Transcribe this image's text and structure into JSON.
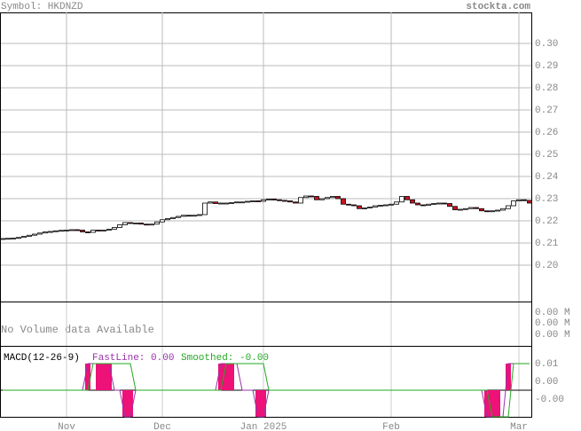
{
  "chart_data": {
    "type": "candlestick",
    "title": "Symbol: HKDNZD",
    "source": "stockta.com",
    "categories": [
      null,
      null,
      null,
      null,
      null,
      null,
      null,
      null,
      null,
      null,
      null,
      null,
      "Nov",
      null,
      null,
      null,
      null,
      null,
      null,
      null,
      null,
      null,
      null,
      null,
      null,
      null,
      null,
      null,
      null,
      null,
      "Dec",
      null,
      null,
      null,
      null,
      null,
      null,
      null,
      null,
      null,
      null,
      null,
      null,
      null,
      null,
      null,
      null,
      null,
      null,
      "Jan 2025",
      null,
      null,
      null,
      null,
      null,
      null,
      null,
      null,
      null,
      null,
      null,
      null,
      null,
      null,
      null,
      null,
      null,
      null,
      null,
      null,
      null,
      null,
      null,
      "Feb",
      null,
      null,
      null,
      null,
      null,
      null,
      null,
      null,
      null,
      null,
      null,
      null,
      null,
      null,
      null,
      null,
      null,
      null,
      null,
      null,
      null,
      null,
      null,
      "Mar",
      null,
      null
    ],
    "open": [
      0.2118,
      0.212,
      0.2121,
      0.2122,
      0.2125,
      0.213,
      0.2135,
      0.214,
      0.2145,
      0.215,
      0.2152,
      0.2155,
      0.2157,
      0.2158,
      0.216,
      0.2158,
      0.215,
      0.2148,
      0.2158,
      0.2156,
      0.2158,
      0.2162,
      0.217,
      0.2182,
      0.2192,
      0.219,
      0.219,
      0.2185,
      0.2182,
      0.2185,
      0.2195,
      0.2205,
      0.221,
      0.2215,
      0.222,
      0.2225,
      0.2222,
      0.2225,
      0.2228,
      0.228,
      0.2285,
      0.2278,
      0.228,
      0.228,
      0.2282,
      0.2285,
      0.2285,
      0.2288,
      0.229,
      0.2288,
      0.2295,
      0.2298,
      0.2295,
      0.2292,
      0.229,
      0.2285,
      0.228,
      0.2305,
      0.2312,
      0.231,
      0.2295,
      0.23,
      0.2305,
      0.231,
      0.23,
      0.2275,
      0.2272,
      0.2268,
      0.2255,
      0.2258,
      0.2262,
      0.2268,
      0.227,
      0.2272,
      0.2275,
      0.2285,
      0.231,
      0.2295,
      0.228,
      0.2272,
      0.227,
      0.2275,
      0.2278,
      0.228,
      0.2278,
      0.2265,
      0.225,
      0.2252,
      0.2255,
      0.226,
      0.2255,
      0.2245,
      0.2242,
      0.2245,
      0.2248,
      0.2255,
      0.2268,
      0.229,
      0.2295,
      0.2292
    ],
    "close": [
      0.212,
      0.2121,
      0.2122,
      0.2125,
      0.213,
      0.2135,
      0.214,
      0.2145,
      0.215,
      0.2152,
      0.2155,
      0.2157,
      0.2158,
      0.216,
      0.2158,
      0.215,
      0.2148,
      0.2158,
      0.2156,
      0.2158,
      0.2162,
      0.217,
      0.2182,
      0.2192,
      0.219,
      0.219,
      0.2185,
      0.2182,
      0.2185,
      0.2195,
      0.2205,
      0.221,
      0.2215,
      0.222,
      0.2225,
      0.2222,
      0.2225,
      0.2228,
      0.228,
      0.2285,
      0.2278,
      0.228,
      0.228,
      0.2282,
      0.2285,
      0.2285,
      0.2288,
      0.229,
      0.2288,
      0.2295,
      0.2298,
      0.2295,
      0.2292,
      0.229,
      0.2285,
      0.228,
      0.2305,
      0.2312,
      0.231,
      0.2295,
      0.23,
      0.2305,
      0.231,
      0.23,
      0.2275,
      0.2272,
      0.2268,
      0.2255,
      0.2258,
      0.2262,
      0.2268,
      0.227,
      0.2272,
      0.2275,
      0.2285,
      0.231,
      0.2295,
      0.228,
      0.2272,
      0.227,
      0.2275,
      0.2278,
      0.228,
      0.2278,
      0.2265,
      0.225,
      0.2252,
      0.2255,
      0.226,
      0.2255,
      0.2245,
      0.2242,
      0.2245,
      0.2248,
      0.2255,
      0.2268,
      0.229,
      0.2295,
      0.2292,
      0.228
    ],
    "up_color": "#ffffff",
    "down_color": "#cc1122",
    "ylim": [
      0.1836,
      0.314
    ],
    "yticks": [
      {
        "value": 0.2,
        "label": "0.20"
      },
      0.21,
      0.22,
      0.23,
      0.24,
      0.25,
      0.26,
      0.27,
      0.28,
      0.29,
      {
        "value": 0.3,
        "label": "0.30"
      }
    ],
    "grid": true,
    "volume_panel": {
      "note": "No Volume data Available",
      "ticks": [
        "0.00 M",
        "0.00 M",
        "0.00 M"
      ]
    },
    "macd": {
      "title": "MACD(12-26-9)",
      "fast_label": "FastLine: 0.00",
      "smoothed_label": "Smoothed: -0.00",
      "hist_color": "#ee1177",
      "fast_color": "#9933aa",
      "smoothed_color": "#22aa22",
      "ylim": [
        -0.006,
        0.0098
      ],
      "yticks": [
        {
          "value": 0.006,
          "label": "0.01"
        },
        {
          "value": 0.002,
          "label": "0.00"
        },
        {
          "value": -0.002,
          "label": "-0.00"
        }
      ],
      "histogram": [
        0,
        0,
        0,
        0,
        0,
        0,
        0,
        0,
        0,
        0,
        0,
        0,
        0,
        0,
        0,
        0,
        0.006,
        0,
        0.006,
        0.006,
        0.006,
        0,
        0,
        -0.006,
        -0.006,
        0,
        0,
        0,
        0,
        0,
        0,
        0,
        0,
        0,
        0,
        0,
        0,
        0,
        0,
        0,
        0,
        0.006,
        0.006,
        0.006,
        0,
        0,
        0,
        0,
        -0.006,
        -0.006,
        0,
        0,
        0,
        0,
        0,
        0,
        0,
        0,
        0,
        0,
        0,
        0,
        0,
        0,
        0,
        0,
        0,
        0,
        0,
        0,
        0,
        0,
        0,
        0,
        0,
        0,
        0,
        0,
        0,
        0,
        0,
        0,
        0,
        0,
        0,
        0,
        0,
        0,
        0,
        0,
        0,
        -0.006,
        -0.006,
        -0.006,
        0,
        0.006,
        0,
        0,
        0,
        0
      ],
      "fast": [
        0,
        0,
        0,
        0,
        0,
        0,
        0,
        0,
        0,
        0,
        0,
        0,
        0,
        0,
        0,
        0,
        0.006,
        0.006,
        0.006,
        0.006,
        0.006,
        0,
        0,
        -0.006,
        -0.006,
        0,
        0,
        0,
        0,
        0,
        0,
        0,
        0,
        0,
        0,
        0,
        0,
        0,
        0,
        0,
        0,
        0.006,
        0.006,
        0.006,
        0.006,
        0,
        0,
        0,
        -0.006,
        -0.006,
        0,
        0,
        0,
        0,
        0,
        0,
        0,
        0,
        0,
        0,
        0,
        0,
        0,
        0,
        0,
        0,
        0,
        0,
        0,
        0,
        0,
        0,
        0,
        0,
        0,
        0,
        0,
        0,
        0,
        0,
        0,
        0,
        0,
        0,
        0,
        0,
        0,
        0,
        0,
        0,
        0,
        -0.006,
        -0.006,
        -0.006,
        -0.006,
        0.006,
        0.006,
        0.006,
        0.006,
        0.006
      ],
      "smoothed": [
        0,
        0,
        0,
        0,
        0,
        0,
        0,
        0,
        0,
        0,
        0,
        0,
        0,
        0,
        0,
        0,
        0,
        0.006,
        0.006,
        0.006,
        0.006,
        0.006,
        0.006,
        0.006,
        0.006,
        0,
        0,
        0,
        0,
        0,
        0,
        0,
        0,
        0,
        0,
        0,
        0,
        0,
        0,
        0,
        0,
        0,
        0.006,
        0.006,
        0.006,
        0.006,
        0.006,
        0.006,
        0.006,
        0.006,
        0,
        0,
        0,
        0,
        0,
        0,
        0,
        0,
        0,
        0,
        0,
        0,
        0,
        0,
        0,
        0,
        0,
        0,
        0,
        0,
        0,
        0,
        0,
        0,
        0,
        0,
        0,
        0,
        0,
        0,
        0,
        0,
        0,
        0,
        0,
        0,
        0,
        0,
        0,
        0,
        0,
        0,
        -0.006,
        -0.006,
        -0.006,
        -0.006,
        0.006,
        0.006,
        0.006,
        0.006
      ]
    }
  }
}
